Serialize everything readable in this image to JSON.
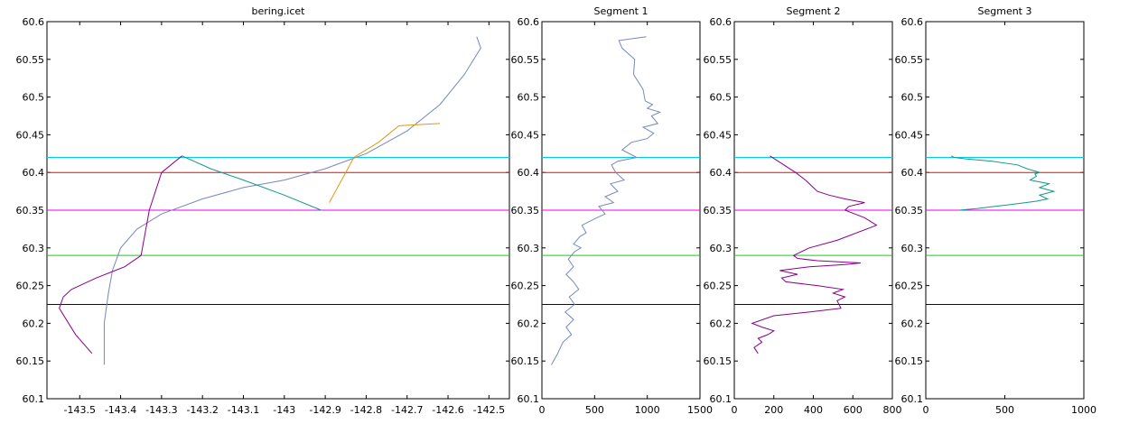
{
  "chart_data": [
    {
      "type": "line",
      "title": "bering.icet",
      "xlim": [
        -143.58,
        -142.45
      ],
      "ylim": [
        60.1,
        60.6
      ],
      "xticks": [
        "-143.5",
        "-143.4",
        "-143.3",
        "-143.2",
        "-143.1",
        "-143",
        "-142.9",
        "-142.8",
        "-142.7",
        "-142.6",
        "-142.5"
      ],
      "xtick_values": [
        -143.5,
        -143.4,
        -143.3,
        -143.2,
        -143.1,
        -143.0,
        -142.9,
        -142.8,
        -142.7,
        -142.6,
        -142.5
      ],
      "yticks": [
        "60.1",
        "60.15",
        "60.2",
        "60.25",
        "60.3",
        "60.35",
        "60.4",
        "60.45",
        "60.5",
        "60.55",
        "60.6"
      ],
      "ytick_values": [
        60.1,
        60.15,
        60.2,
        60.25,
        60.3,
        60.35,
        60.4,
        60.45,
        60.5,
        60.55,
        60.6
      ],
      "hlines": [
        {
          "y": 60.42,
          "color": "#00ccee"
        },
        {
          "y": 60.4,
          "color": "#ff0000"
        },
        {
          "y": 60.35,
          "color": "#ee00ee"
        },
        {
          "y": 60.29,
          "color": "#00dd00"
        },
        {
          "y": 60.225,
          "color": "#000080"
        }
      ],
      "series": [
        {
          "color": "#7788bb",
          "x": [
            -143.44,
            -143.44,
            -143.43,
            -143.42,
            -143.4,
            -143.36,
            -143.3,
            -143.2,
            -143.1,
            -143.0,
            -142.9,
            -142.8,
            -142.7,
            -142.62,
            -142.56,
            -142.52,
            -142.53
          ],
          "y": [
            60.145,
            60.2,
            60.24,
            60.27,
            60.3,
            60.325,
            60.345,
            60.365,
            60.38,
            60.39,
            60.405,
            60.425,
            60.455,
            60.49,
            60.53,
            60.565,
            60.58
          ]
        },
        {
          "color": "#880088",
          "x": [
            -143.47,
            -143.51,
            -143.55,
            -143.54,
            -143.52,
            -143.46,
            -143.39,
            -143.35,
            -143.33,
            -143.3,
            -143.25
          ],
          "y": [
            60.16,
            60.185,
            60.22,
            60.235,
            60.245,
            60.26,
            60.275,
            60.29,
            60.35,
            60.4,
            60.422
          ]
        },
        {
          "color": "#119988",
          "x": [
            -143.25,
            -143.18,
            -143.1,
            -143.0,
            -142.91
          ],
          "y": [
            60.422,
            60.405,
            60.39,
            60.37,
            60.35
          ]
        },
        {
          "color": "#dd9911",
          "x": [
            -142.89,
            -142.87,
            -142.85,
            -142.83,
            -142.77,
            -142.72,
            -142.62
          ],
          "y": [
            60.36,
            60.38,
            60.4,
            60.42,
            60.44,
            60.462,
            60.465
          ]
        }
      ]
    },
    {
      "type": "line",
      "title": "Segment 1",
      "xlim": [
        0,
        1500
      ],
      "ylim": [
        60.1,
        60.6
      ],
      "xticks": [
        "0",
        "500",
        "1000",
        "1500"
      ],
      "xtick_values": [
        0,
        500,
        1000,
        1500
      ],
      "yticks": [
        "60.1",
        "60.15",
        "60.2",
        "60.25",
        "60.3",
        "60.35",
        "60.4",
        "60.45",
        "60.5",
        "60.55",
        "60.6"
      ],
      "ytick_values": [
        60.1,
        60.15,
        60.2,
        60.25,
        60.3,
        60.35,
        60.4,
        60.45,
        60.5,
        60.55,
        60.6
      ],
      "hlines": [
        {
          "y": 60.42,
          "color": "#00ccee"
        },
        {
          "y": 60.4,
          "color": "#ff0000"
        },
        {
          "y": 60.35,
          "color": "#ee00ee"
        },
        {
          "y": 60.29,
          "color": "#00dd00"
        },
        {
          "y": 60.225,
          "color": "#000080"
        }
      ],
      "series": [
        {
          "color": "#7788bb",
          "x": [
            90,
            150,
            200,
            280,
            230,
            300,
            220,
            310,
            260,
            350,
            300,
            230,
            300,
            250,
            310,
            370,
            300,
            360,
            420,
            380,
            520,
            600,
            540,
            680,
            600,
            720,
            650,
            780,
            700,
            660,
            720,
            900,
            760,
            850,
            1000,
            1060,
            960,
            1100,
            1040,
            1120,
            1000,
            1050,
            980,
            960,
            870,
            880,
            760,
            730,
            990
          ],
          "y": [
            60.145,
            60.16,
            60.175,
            60.185,
            60.195,
            60.205,
            60.215,
            60.225,
            60.235,
            60.245,
            60.255,
            60.265,
            60.275,
            60.285,
            60.295,
            60.3,
            60.305,
            60.315,
            60.32,
            60.33,
            60.34,
            60.345,
            60.355,
            60.36,
            60.368,
            60.375,
            60.385,
            60.39,
            60.4,
            60.41,
            60.415,
            60.42,
            60.43,
            60.44,
            60.445,
            60.452,
            60.46,
            60.465,
            60.475,
            60.48,
            60.485,
            60.49,
            60.495,
            60.51,
            60.53,
            60.55,
            60.565,
            60.575,
            60.58
          ]
        }
      ]
    },
    {
      "type": "line",
      "title": "Segment 2",
      "xlim": [
        0,
        800
      ],
      "ylim": [
        60.1,
        60.6
      ],
      "xticks": [
        "0",
        "200",
        "400",
        "600",
        "800"
      ],
      "xtick_values": [
        0,
        200,
        400,
        600,
        800
      ],
      "yticks": [
        "60.1",
        "60.15",
        "60.2",
        "60.25",
        "60.3",
        "60.35",
        "60.4",
        "60.45",
        "60.5",
        "60.55",
        "60.6"
      ],
      "ytick_values": [
        60.1,
        60.15,
        60.2,
        60.25,
        60.3,
        60.35,
        60.4,
        60.45,
        60.5,
        60.55,
        60.6
      ],
      "hlines": [
        {
          "y": 60.42,
          "color": "#00ccee"
        },
        {
          "y": 60.4,
          "color": "#ff0000"
        },
        {
          "y": 60.35,
          "color": "#ee00ee"
        },
        {
          "y": 60.29,
          "color": "#00dd00"
        },
        {
          "y": 60.225,
          "color": "#000080"
        }
      ],
      "series": [
        {
          "color": "#880088",
          "x": [
            120,
            100,
            140,
            120,
            170,
            200,
            140,
            90,
            200,
            380,
            540,
            520,
            560,
            500,
            550,
            420,
            260,
            240,
            320,
            230,
            380,
            560,
            640,
            420,
            320,
            300,
            380,
            520,
            720,
            660,
            560,
            580,
            660,
            560,
            480,
            420,
            400,
            360,
            310,
            180
          ],
          "y": [
            60.16,
            60.168,
            60.175,
            60.18,
            60.185,
            60.19,
            60.195,
            60.2,
            60.21,
            60.215,
            60.22,
            60.23,
            60.235,
            60.24,
            60.245,
            60.25,
            60.255,
            60.26,
            60.265,
            60.27,
            60.275,
            60.278,
            60.28,
            60.283,
            60.286,
            60.29,
            60.3,
            60.31,
            60.33,
            60.34,
            60.35,
            60.355,
            60.36,
            60.365,
            60.37,
            60.375,
            60.38,
            60.39,
            60.4,
            60.422
          ]
        }
      ]
    },
    {
      "type": "line",
      "title": "Segment 3",
      "xlim": [
        0,
        1000
      ],
      "ylim": [
        60.1,
        60.6
      ],
      "xticks": [
        "0",
        "500",
        "1000"
      ],
      "xtick_values": [
        0,
        500,
        1000
      ],
      "yticks": [
        "60.1",
        "60.15",
        "60.2",
        "60.25",
        "60.3",
        "60.35",
        "60.4",
        "60.45",
        "60.5",
        "60.55",
        "60.6"
      ],
      "ytick_values": [
        60.1,
        60.15,
        60.2,
        60.25,
        60.3,
        60.35,
        60.4,
        60.45,
        60.5,
        60.55,
        60.6
      ],
      "hlines": [
        {
          "y": 60.42,
          "color": "#00ccee"
        },
        {
          "y": 60.4,
          "color": "#ff0000"
        },
        {
          "y": 60.35,
          "color": "#ee00ee"
        },
        {
          "y": 60.29,
          "color": "#00dd00"
        },
        {
          "y": 60.225,
          "color": "#000080"
        }
      ],
      "series": [
        {
          "color": "#119988",
          "x": [
            210,
            320,
            560,
            700,
            770,
            720,
            810,
            720,
            780,
            660,
            700,
            690,
            720,
            640,
            580,
            420,
            260,
            180,
            160
          ],
          "y": [
            60.35,
            60.352,
            60.358,
            60.362,
            60.365,
            60.37,
            60.375,
            60.38,
            60.385,
            60.39,
            60.395,
            60.398,
            60.4,
            60.405,
            60.41,
            60.415,
            60.418,
            60.42,
            60.422
          ]
        }
      ]
    }
  ]
}
